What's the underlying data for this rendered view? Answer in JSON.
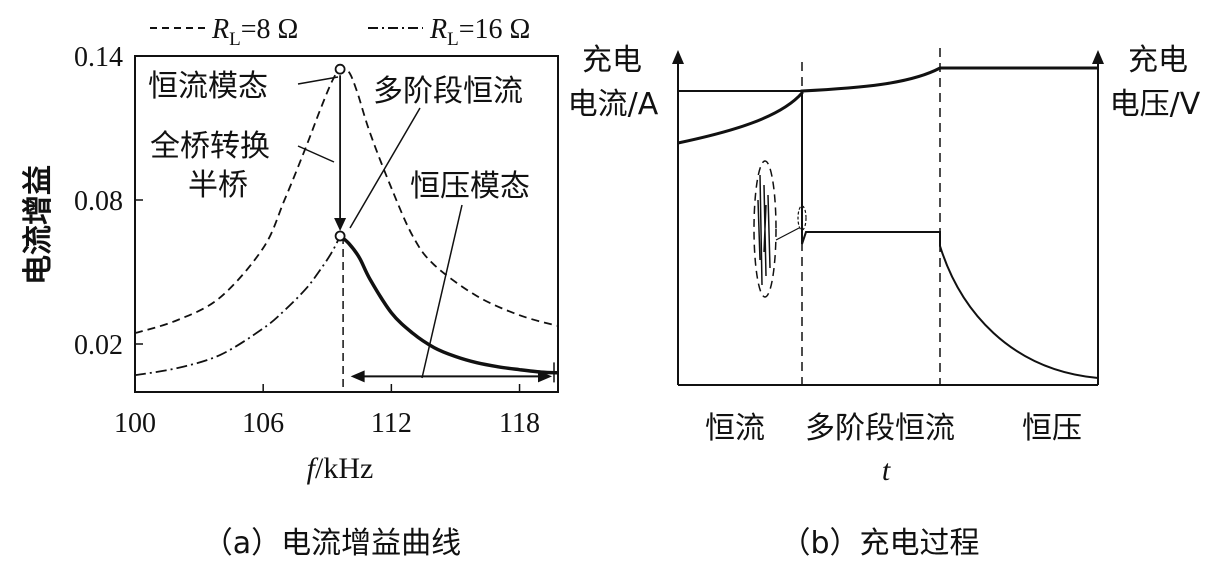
{
  "chart_data": [
    {
      "panel": "a",
      "type": "line",
      "caption": "（a）电流增益曲线",
      "ylabel": "电流增益",
      "xlabel_italic": "f",
      "xlabel_unit": "/kHz",
      "xlim": [
        100,
        119.8
      ],
      "ylim": [
        0.0,
        0.14
      ],
      "xticks": [
        "100",
        "106",
        "112",
        "118"
      ],
      "xtick_values": [
        100,
        106,
        112,
        118
      ],
      "yticks": [
        "0.14",
        "0.08",
        "0.02"
      ],
      "ytick_values": [
        0.14,
        0.08,
        0.02
      ],
      "legend": [
        {
          "R": "R",
          "sub": "L",
          "eq": "=8 Ω",
          "style": "dashed"
        },
        {
          "R": "R",
          "sub": "L",
          "eq": "=16 Ω",
          "style": "dashdot"
        }
      ],
      "series": [
        {
          "style": "dashed",
          "x": [
            100,
            102,
            104,
            106,
            107,
            108,
            108.6,
            109.2,
            109.6,
            110,
            110.4,
            111,
            112,
            113,
            114,
            116,
            118,
            119.8
          ],
          "values": [
            0.0245,
            0.03,
            0.0395,
            0.06,
            0.08,
            0.102,
            0.116,
            0.129,
            0.1345,
            0.1335,
            0.125,
            0.108,
            0.085,
            0.065,
            0.053,
            0.04,
            0.032,
            0.0275
          ]
        },
        {
          "style": "dashdot",
          "x": [
            100,
            102,
            104,
            106,
            107,
            108,
            108.6,
            109.2,
            109.6
          ],
          "values": [
            0.007,
            0.01,
            0.0155,
            0.0265,
            0.034,
            0.043,
            0.05,
            0.058,
            0.065
          ]
        },
        {
          "style": "solid-bold",
          "x": [
            109.6,
            110,
            110.5,
            111,
            112,
            113,
            114,
            115,
            116,
            117,
            118,
            119,
            119.8
          ],
          "values": [
            0.065,
            0.062,
            0.056,
            0.047,
            0.033,
            0.0245,
            0.0185,
            0.0148,
            0.0122,
            0.0105,
            0.0093,
            0.0083,
            0.008
          ]
        }
      ],
      "annotations": [
        "恒流模态",
        "全桥转换",
        "半桥",
        "多阶段恒流",
        "恒压模态"
      ]
    },
    {
      "panel": "b",
      "type": "line",
      "caption": "（b）充电过程",
      "left_axis_label": [
        "充电",
        "电流/A"
      ],
      "right_axis_label": [
        "充电",
        "电压/V"
      ],
      "xlabel": "t",
      "stage_labels": [
        "恒流",
        "多阶段恒流",
        "恒压"
      ],
      "voltage_description": "rises during 恒流 and 多阶段恒流, flat during 恒压",
      "current_description": "constant during 恒流, stepped during 多阶段恒流, decays during 恒压"
    }
  ]
}
